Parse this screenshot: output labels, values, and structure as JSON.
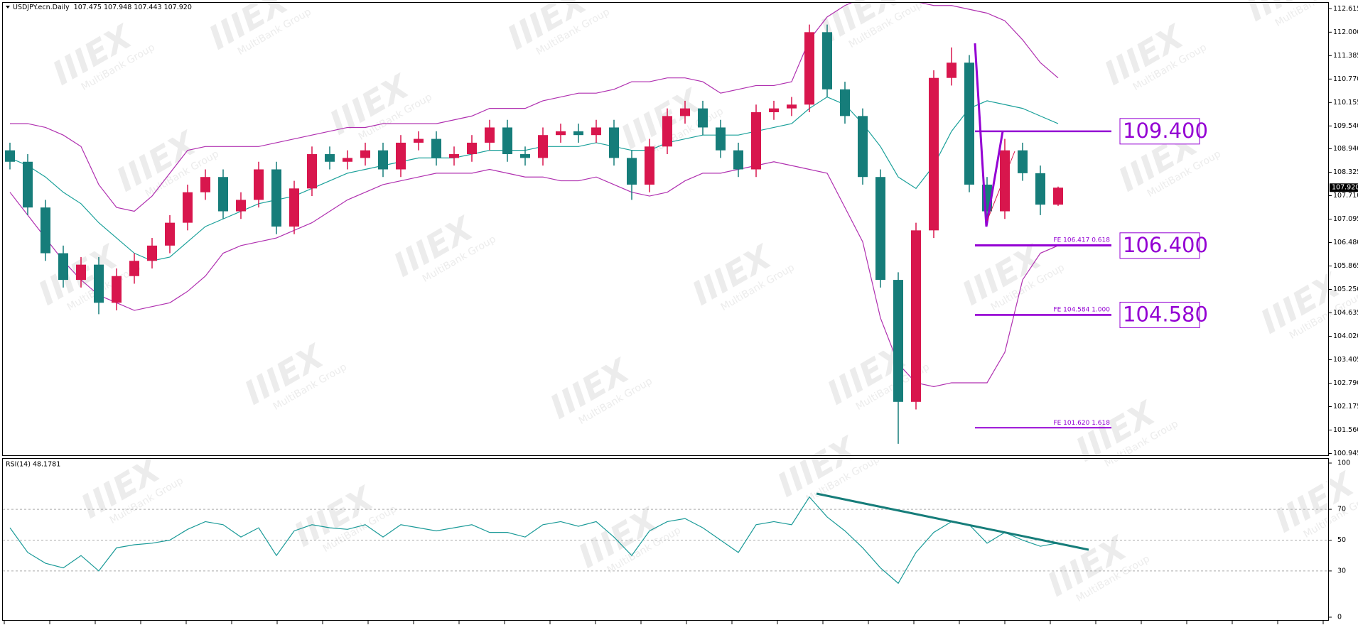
{
  "chart_data": [
    {
      "type": "candlestick",
      "title": "USDJPY.ecn.Daily",
      "subtitle": "107.475 107.948 107.443 107.920",
      "open": [
        108.9,
        108.6,
        107.4,
        106.2,
        105.5,
        105.9,
        104.9,
        105.6,
        106.0,
        106.4,
        107.0,
        107.8,
        108.2,
        107.3,
        107.6,
        108.4,
        106.9,
        107.9,
        108.8,
        108.6,
        108.7,
        108.9,
        108.4,
        109.1,
        109.2,
        108.7,
        108.8,
        109.1,
        109.5,
        108.8,
        108.7,
        109.3,
        109.4,
        109.3,
        109.5,
        108.7,
        108.0,
        109.0,
        109.8,
        110.0,
        109.5,
        108.9,
        108.4,
        109.9,
        110.0,
        110.1,
        112.0,
        110.5,
        109.8,
        108.2,
        105.5,
        102.3,
        106.8,
        110.8,
        111.2,
        108.0,
        107.3,
        108.9,
        108.3,
        107.475
      ],
      "high": [
        109.1,
        108.8,
        107.6,
        106.4,
        106.1,
        106.1,
        105.8,
        106.2,
        106.6,
        107.2,
        108.0,
        108.4,
        108.4,
        107.8,
        108.6,
        108.6,
        108.1,
        109.0,
        109.0,
        108.9,
        109.1,
        109.1,
        109.3,
        109.4,
        109.4,
        109.0,
        109.3,
        109.7,
        109.7,
        109.0,
        109.5,
        109.6,
        109.6,
        109.7,
        109.7,
        108.9,
        109.2,
        110.0,
        110.2,
        110.2,
        109.7,
        109.1,
        110.1,
        110.2,
        110.3,
        112.2,
        112.2,
        110.7,
        110.0,
        108.4,
        105.7,
        107.0,
        111.0,
        111.6,
        111.4,
        108.2,
        109.2,
        109.1,
        108.5,
        107.948
      ],
      "low": [
        108.4,
        107.2,
        106.0,
        105.3,
        105.3,
        104.6,
        104.7,
        105.4,
        105.8,
        106.2,
        106.8,
        107.6,
        107.1,
        107.1,
        107.4,
        106.7,
        106.7,
        107.7,
        108.4,
        108.4,
        108.5,
        108.2,
        108.2,
        108.9,
        108.5,
        108.5,
        108.6,
        108.9,
        108.6,
        108.5,
        108.5,
        109.1,
        109.1,
        109.1,
        108.5,
        107.6,
        107.8,
        108.8,
        109.6,
        109.3,
        108.7,
        108.2,
        108.2,
        109.7,
        109.8,
        109.9,
        110.3,
        109.6,
        108.0,
        105.3,
        101.2,
        102.1,
        106.6,
        110.6,
        107.8,
        107.0,
        107.1,
        108.1,
        107.2,
        107.443
      ],
      "close": [
        108.6,
        107.4,
        106.2,
        105.5,
        105.9,
        104.9,
        105.6,
        106.0,
        106.4,
        107.0,
        107.8,
        108.2,
        107.3,
        107.6,
        108.4,
        106.9,
        107.9,
        108.8,
        108.6,
        108.7,
        108.9,
        108.4,
        109.1,
        109.2,
        108.7,
        108.8,
        109.1,
        109.5,
        108.8,
        108.7,
        109.3,
        109.4,
        109.3,
        109.5,
        108.7,
        108.0,
        109.0,
        109.8,
        110.0,
        109.5,
        108.9,
        108.4,
        109.9,
        110.0,
        110.1,
        112.0,
        110.5,
        109.8,
        108.2,
        105.5,
        102.3,
        106.8,
        110.8,
        111.2,
        108.0,
        107.3,
        108.9,
        108.3,
        107.475,
        107.92
      ],
      "up_color": "#d8164d",
      "down_color": "#167d7a",
      "bands": [
        {
          "color": "#b030b0",
          "values": [
            109.6,
            109.6,
            109.5,
            109.3,
            109.0,
            108.0,
            107.4,
            107.3,
            107.7,
            108.3,
            108.9,
            109.0,
            109.0,
            109.0,
            109.0,
            109.1,
            109.2,
            109.3,
            109.4,
            109.5,
            109.5,
            109.6,
            109.6,
            109.6,
            109.6,
            109.7,
            109.8,
            110.0,
            110.0,
            110.0,
            110.2,
            110.3,
            110.4,
            110.4,
            110.5,
            110.7,
            110.7,
            110.8,
            110.8,
            110.7,
            110.4,
            110.5,
            110.6,
            110.6,
            110.7,
            111.8,
            112.4,
            112.7,
            112.9,
            113.0,
            113.0,
            112.8,
            112.7,
            112.7,
            112.6,
            112.5,
            112.3,
            111.8,
            111.2,
            110.8
          ]
        },
        {
          "color": "#1aa09a",
          "values": [
            108.7,
            108.5,
            108.2,
            107.8,
            107.5,
            107.0,
            106.6,
            106.2,
            106.0,
            106.1,
            106.5,
            106.9,
            107.1,
            107.3,
            107.5,
            107.6,
            107.7,
            107.9,
            108.1,
            108.3,
            108.4,
            108.5,
            108.6,
            108.7,
            108.7,
            108.7,
            108.8,
            108.9,
            108.9,
            108.9,
            109.0,
            109.0,
            109.0,
            109.1,
            109.0,
            108.9,
            108.9,
            109.1,
            109.2,
            109.3,
            109.3,
            109.3,
            109.4,
            109.5,
            109.6,
            110.0,
            110.3,
            110.1,
            109.6,
            109.0,
            108.2,
            107.9,
            108.5,
            109.4,
            110.0,
            110.2,
            110.1,
            110.0,
            109.8,
            109.6
          ]
        },
        {
          "color": "#b030b0",
          "values": [
            107.8,
            107.2,
            106.6,
            106.0,
            105.5,
            105.1,
            104.9,
            104.7,
            104.8,
            104.9,
            105.2,
            105.6,
            106.2,
            106.4,
            106.5,
            106.6,
            106.8,
            107.0,
            107.3,
            107.6,
            107.8,
            108.0,
            108.1,
            108.2,
            108.3,
            108.3,
            108.3,
            108.4,
            108.3,
            108.2,
            108.2,
            108.1,
            108.1,
            108.2,
            108.0,
            107.8,
            107.7,
            107.8,
            108.1,
            108.3,
            108.3,
            108.4,
            108.5,
            108.6,
            108.5,
            108.4,
            108.3,
            107.4,
            106.5,
            104.5,
            103.3,
            102.8,
            102.7,
            102.8,
            102.8,
            102.8,
            103.6,
            105.5,
            106.2,
            106.4
          ]
        }
      ],
      "ylim": [
        100.88,
        112.77
      ],
      "yticks": [
        112.615,
        {
          "value": 112,
          "label": "112.000"
        },
        111.385,
        {
          "value": 110.77,
          "label": "110.770"
        },
        110.155,
        {
          "value": 109.54,
          "label": "109.540"
        },
        {
          "value": 108.94,
          "label": "108.940"
        },
        108.325,
        {
          "value": 107.71,
          "label": "107.710"
        },
        107.095,
        {
          "value": 106.48,
          "label": "106.480"
        },
        105.865,
        {
          "value": 105.25,
          "label": "105.250"
        },
        104.635,
        {
          "value": 104.02,
          "label": "104.020"
        },
        103.405,
        {
          "value": 102.79,
          "label": "102.790"
        },
        102.175,
        {
          "value": 101.56,
          "label": "101.560"
        },
        100.945
      ],
      "last_price": {
        "value": 107.92,
        "label": "107.920"
      },
      "levels": [
        {
          "value": 109.4,
          "label": "109.400"
        },
        {
          "value": 106.4,
          "label": "106.400"
        },
        {
          "value": 104.58,
          "label": "104.580"
        }
      ],
      "fe_levels": [
        {
          "value": 106.417,
          "label": "FE 106.417  0.618"
        },
        {
          "value": 104.584,
          "label": "FE 104.584  1.000"
        },
        {
          "value": 101.62,
          "label": "FE 101.620  1.618"
        }
      ],
      "level_color": "#9400d3"
    },
    {
      "type": "line",
      "title": "RSI(14) 48.1781",
      "color": "#1a9a98",
      "values": [
        58,
        42,
        35,
        32,
        40,
        30,
        45,
        47,
        48,
        50,
        57,
        62,
        60,
        52,
        58,
        40,
        56,
        60,
        58,
        57,
        60,
        52,
        60,
        58,
        56,
        58,
        60,
        55,
        55,
        52,
        60,
        62,
        59,
        62,
        52,
        40,
        56,
        62,
        64,
        58,
        50,
        42,
        60,
        62,
        60,
        78,
        65,
        56,
        45,
        32,
        22,
        42,
        55,
        62,
        60,
        48,
        55,
        50,
        46,
        48.1781
      ],
      "ylim": [
        0,
        100
      ],
      "yticks": [
        100,
        70,
        50,
        30,
        0
      ]
    }
  ],
  "watermark": {
    "logo": "IIIEX",
    "text": "MultiBank Group"
  }
}
